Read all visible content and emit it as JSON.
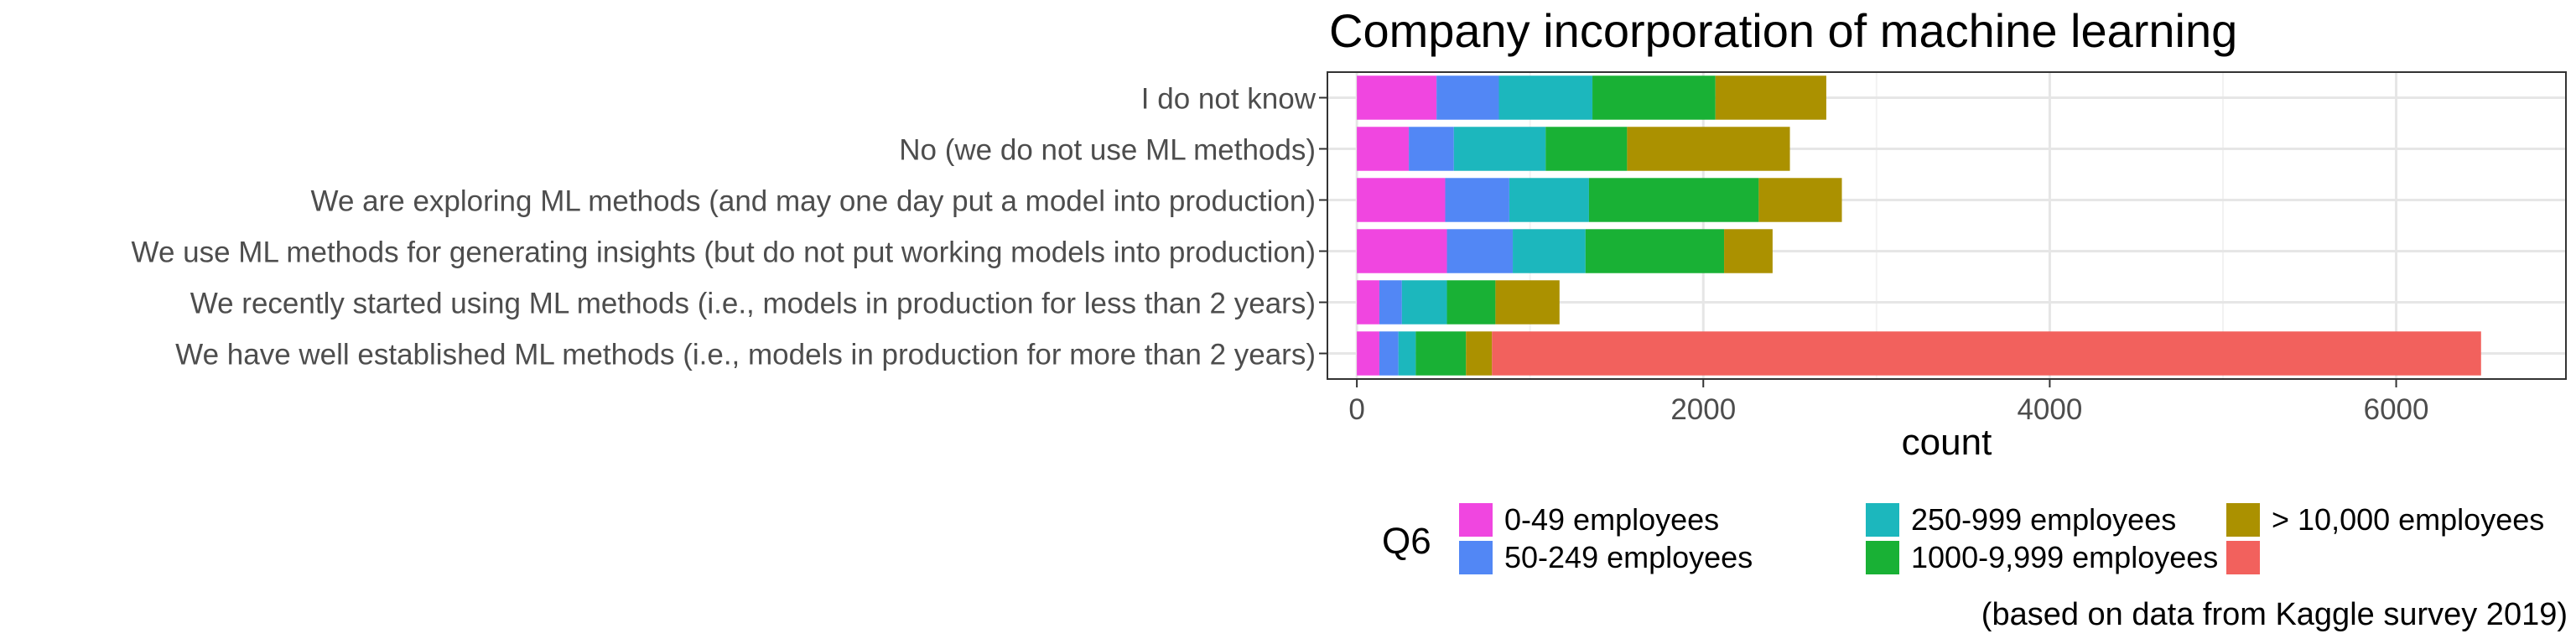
{
  "chart_data": {
    "type": "bar",
    "orientation": "horizontal",
    "stacked": true,
    "title": "Company incorporation of machine learning",
    "caption": "(based on data from Kaggle survey 2019)",
    "xlabel": "count",
    "ylabel": "",
    "xlim": [
      -170,
      6980
    ],
    "xticks": [
      0,
      2000,
      4000,
      6000
    ],
    "xtick_labels": [
      "0",
      "2000",
      "4000",
      "6000"
    ],
    "grid": true,
    "legend_title": "Q6",
    "legend_position": "bottom",
    "categories": [
      "I do not know",
      "No (we do not use ML methods)",
      "We are exploring ML methods (and may one day put a model into production)",
      "We use ML methods for generating insights (but do not put working models into production)",
      "We recently started using ML methods (i.e., models in production for less than 2 years)",
      "We have well established ML methods (i.e., models in production for more than 2 years)"
    ],
    "series": [
      {
        "name": "0-49 employees",
        "color": "#F046E0",
        "values": [
          460,
          300,
          510,
          520,
          130,
          130
        ]
      },
      {
        "name": "50-249 employees",
        "color": "#5287F5",
        "values": [
          360,
          260,
          370,
          380,
          130,
          110
        ]
      },
      {
        "name": "250-999 employees",
        "color": "#1CB7BD",
        "values": [
          540,
          530,
          460,
          420,
          260,
          100
        ]
      },
      {
        "name": "1000-9,999 employees",
        "color": "#19B135",
        "values": [
          710,
          470,
          980,
          800,
          280,
          290
        ]
      },
      {
        "name": "> 10,000 employees",
        "color": "#AB9100",
        "values": [
          640,
          940,
          480,
          280,
          370,
          150
        ]
      },
      {
        "name": "",
        "color": "#F2615D",
        "values": [
          0,
          0,
          0,
          0,
          0,
          5710
        ]
      }
    ]
  }
}
